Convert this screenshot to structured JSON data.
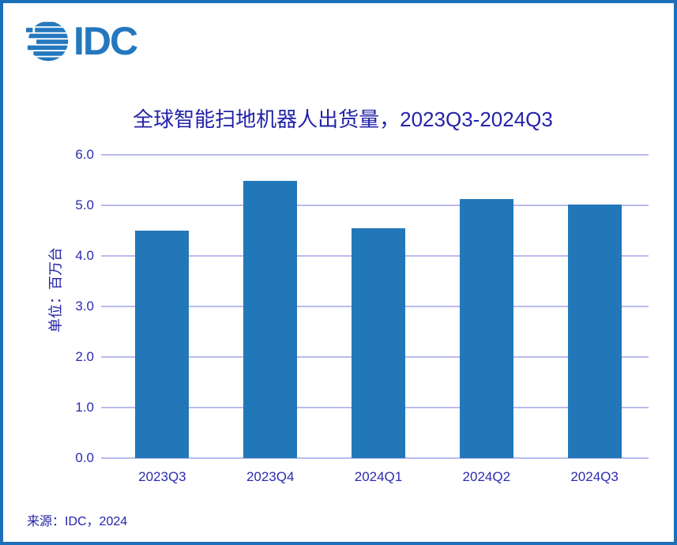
{
  "logo": {
    "text": "IDC",
    "color": "#2478BE"
  },
  "chart_data": {
    "type": "bar",
    "title": "全球智能扫地机器人出货量，2023Q3-2024Q3",
    "categories": [
      "2023Q3",
      "2023Q4",
      "2024Q1",
      "2024Q2",
      "2024Q3"
    ],
    "values": [
      4.5,
      5.48,
      4.55,
      5.12,
      5.02
    ],
    "xlabel": "",
    "ylabel": "单位：百万台",
    "ylim": [
      0,
      6
    ],
    "ytick_step": 1.0,
    "ytick_labels": [
      "0.0",
      "1.0",
      "2.0",
      "3.0",
      "4.0",
      "5.0",
      "6.0"
    ],
    "grid": true,
    "legend": "none",
    "bar_color": "#2277B9",
    "gridline_color": "#B9BCEC",
    "text_color": "#2323A8"
  },
  "footer": {
    "source": "来源：IDC，2024"
  }
}
